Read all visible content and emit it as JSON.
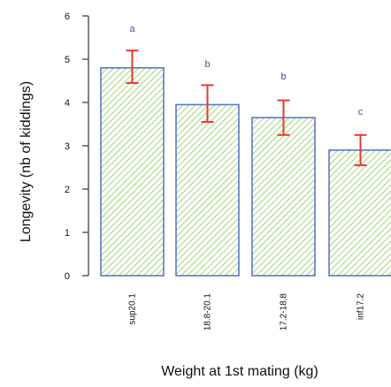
{
  "chart_data": {
    "type": "bar",
    "title": "",
    "xlabel": "Weight at 1st mating (kg)",
    "ylabel": "Longevity (nb of kiddings)",
    "categories": [
      "sup20.1",
      "18.8-20.1",
      "17.2-18.8",
      "inf17.2"
    ],
    "values": [
      4.8,
      3.95,
      3.65,
      2.9
    ],
    "error_lower": [
      4.45,
      3.55,
      3.25,
      2.55
    ],
    "error_upper": [
      5.2,
      4.4,
      4.05,
      3.25
    ],
    "significance_letters": [
      "a",
      "b",
      "b",
      "c"
    ],
    "ylim": [
      0,
      6
    ],
    "yticks": [
      "0",
      "1",
      "2",
      "3",
      "4",
      "5",
      "6"
    ],
    "grid": false,
    "legend": "none",
    "colors": {
      "bar_hatch": "#7ac143",
      "bar_border": "#5b78c8",
      "error_bar": "#e63a2e",
      "significance_letter": "#4a4aa8",
      "axis": "#333333",
      "text": "#111111"
    }
  }
}
